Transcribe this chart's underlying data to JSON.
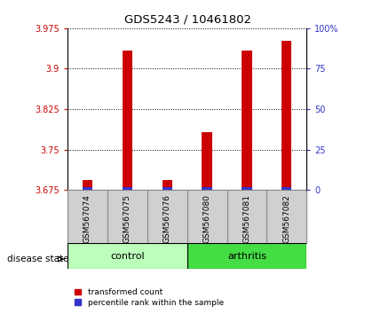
{
  "title": "GDS5243 / 10461802",
  "samples": [
    "GSM567074",
    "GSM567075",
    "GSM567076",
    "GSM567080",
    "GSM567081",
    "GSM567082"
  ],
  "group_labels": [
    "control",
    "arthritis"
  ],
  "ylim_left": [
    3.675,
    3.975
  ],
  "ylim_right": [
    0,
    100
  ],
  "yticks_left": [
    3.675,
    3.75,
    3.825,
    3.9,
    3.975
  ],
  "yticks_right": [
    0,
    25,
    50,
    75,
    100
  ],
  "ytick_labels_left": [
    "3.675",
    "3.75",
    "3.825",
    "3.9",
    "3.975"
  ],
  "ytick_labels_right": [
    "0",
    "25",
    "50",
    "75",
    "100%"
  ],
  "red_tops": [
    3.693,
    3.934,
    3.693,
    3.783,
    3.934,
    3.952
  ],
  "blue_tops": [
    3.681,
    3.681,
    3.681,
    3.681,
    3.681,
    3.681
  ],
  "bar_base": 3.675,
  "bar_width": 0.25,
  "red_color": "#CC0000",
  "blue_color": "#3333CC",
  "tick_color_left": "#CC0000",
  "tick_color_right": "#3333CC",
  "legend_red_label": "transformed count",
  "legend_blue_label": "percentile rank within the sample",
  "disease_state_label": "disease state",
  "bar_area_bg": "#D0D0D0",
  "control_color": "#BBFFBB",
  "arthritis_color": "#44DD44",
  "spine_color": "#888888"
}
